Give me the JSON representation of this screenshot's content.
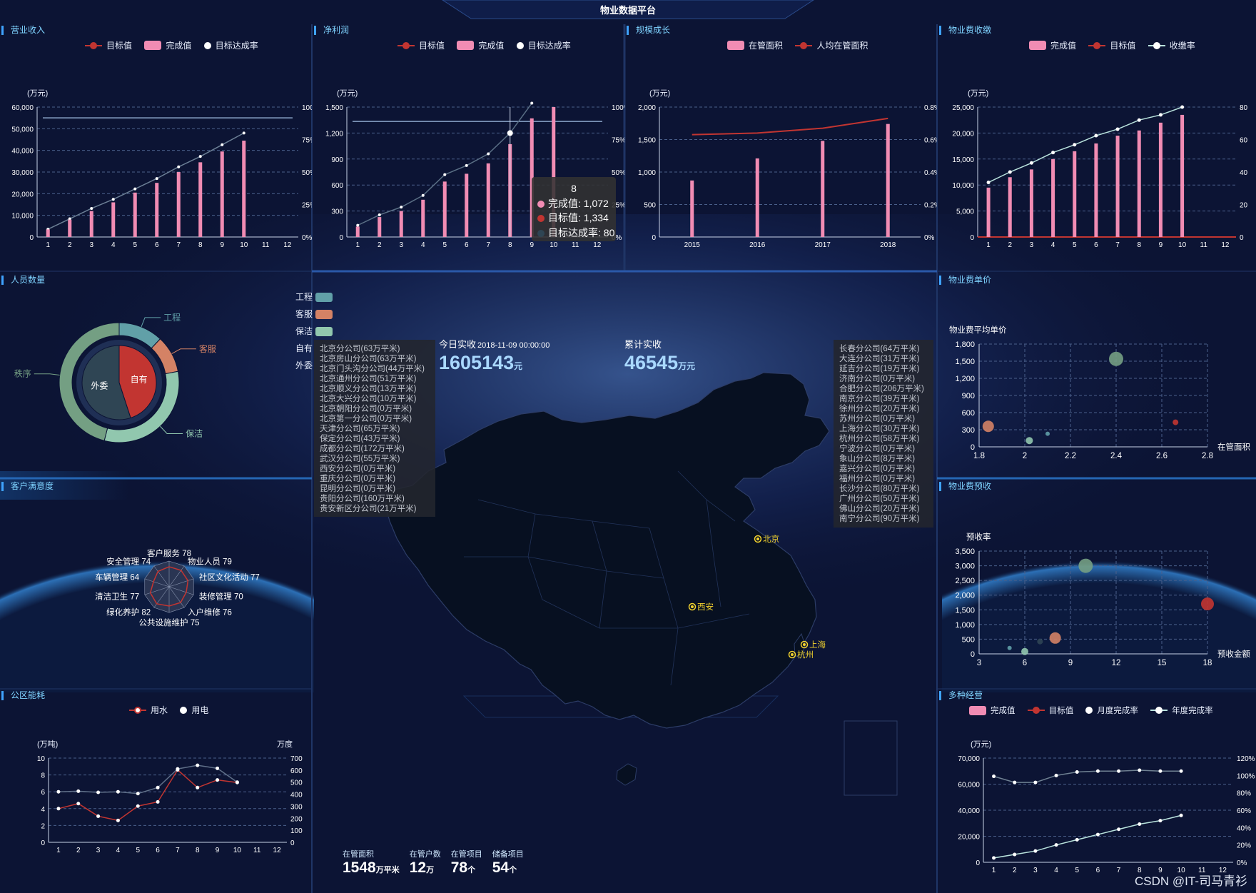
{
  "page_title": "物业数据平台",
  "unit_wan_yuan": "(万元)",
  "colors": {
    "accent": "#7fd3ff",
    "bar": "#f18cb3",
    "target": "#c23531",
    "rate": "#b9e3dd",
    "panel_title": "#7fd3ff"
  },
  "revenue": {
    "title": "营业收入",
    "legend": [
      "目标值",
      "完成值",
      "目标达成率"
    ],
    "y_unit": "(万元)",
    "chart_data": {
      "type": "bar",
      "categories": [
        "1",
        "2",
        "3",
        "4",
        "5",
        "6",
        "7",
        "8",
        "9",
        "10",
        "11",
        "12"
      ],
      "series": [
        {
          "name": "目标值",
          "values": [
            55000,
            55000,
            55000,
            55000,
            55000,
            55000,
            55000,
            55000,
            55000,
            55000,
            55000,
            55000
          ]
        },
        {
          "name": "完成值",
          "values": [
            3500,
            8000,
            12000,
            16000,
            20500,
            25000,
            30000,
            34500,
            39500,
            44500,
            null,
            null
          ]
        },
        {
          "name": "目标达成率",
          "values": [
            6,
            14,
            22,
            29,
            37,
            45,
            54,
            62,
            71,
            80,
            null,
            null
          ]
        }
      ],
      "ylim": [
        0,
        60000
      ],
      "y_ticks": [
        "0",
        "10,000",
        "20,000",
        "30,000",
        "40,000",
        "50,000",
        "60,000"
      ],
      "y2_ticks": [
        "0%",
        "25%",
        "50%",
        "75%",
        "100%"
      ]
    }
  },
  "net_profit": {
    "title": "净利润",
    "legend": [
      "目标值",
      "完成值",
      "目标达成率"
    ],
    "y_unit": "(万元)",
    "chart_data": {
      "type": "bar",
      "categories": [
        "1",
        "2",
        "3",
        "4",
        "5",
        "6",
        "7",
        "8",
        "9",
        "10",
        "11",
        "12"
      ],
      "series": [
        {
          "name": "目标值",
          "values": [
            1334,
            1334,
            1334,
            1334,
            1334,
            1334,
            1334,
            1334,
            1334,
            1334,
            1334,
            1334
          ]
        },
        {
          "name": "完成值",
          "values": [
            120,
            230,
            300,
            430,
            640,
            730,
            850,
            1072,
            1370,
            1500,
            null,
            null
          ]
        },
        {
          "name": "目标达成率",
          "values": [
            9,
            17,
            23,
            32,
            48,
            55,
            64,
            80,
            103,
            null,
            null,
            null
          ]
        }
      ],
      "ylim": [
        0,
        1500
      ],
      "y_ticks": [
        "0",
        "300",
        "600",
        "900",
        "1,200",
        "1,500"
      ],
      "y2_ticks": [
        "0%",
        "25%",
        "50%",
        "75%",
        "100%"
      ]
    },
    "tooltip": {
      "title": "8",
      "rows": [
        "完成值: 1,072",
        "目标值: 1,334",
        "目标达成率: 80"
      ]
    }
  },
  "scale_growth": {
    "title": "规模成长",
    "legend": [
      "在管面积",
      "人均在管面积"
    ],
    "y_unit": "(万元)",
    "chart_data": {
      "type": "bar",
      "categories": [
        "2015",
        "2016",
        "2017",
        "2018"
      ],
      "series": [
        {
          "name": "在管面积",
          "values": [
            870,
            1210,
            1480,
            1740
          ]
        },
        {
          "name": "人均在管面积",
          "values": [
            0.63,
            0.64,
            0.67,
            0.73
          ]
        }
      ],
      "ylim": [
        0,
        2000
      ],
      "y_ticks": [
        "0",
        "500",
        "1,000",
        "1,500",
        "2,000"
      ],
      "y2_ticks": [
        "0%",
        "0.2%",
        "0.4%",
        "0.6%",
        "0.8%"
      ]
    }
  },
  "fee_collection": {
    "title": "物业费收缴",
    "legend": [
      "完成值",
      "目标值",
      "收缴率"
    ],
    "y_unit": "(万元)",
    "chart_data": {
      "type": "bar",
      "categories": [
        "1",
        "2",
        "3",
        "4",
        "5",
        "6",
        "7",
        "8",
        "9",
        "10",
        "11",
        "12"
      ],
      "series": [
        {
          "name": "完成值",
          "values": [
            9500,
            11500,
            13000,
            15000,
            16500,
            18000,
            19500,
            20500,
            22000,
            23500,
            null,
            null
          ]
        },
        {
          "name": "目标值",
          "values": [
            0,
            0,
            0,
            0,
            0,
            0,
            0,
            0,
            0,
            0,
            0,
            0
          ]
        },
        {
          "name": "收缴率",
          "values": [
            42,
            50,
            57,
            65,
            71,
            78,
            83,
            90,
            94,
            100,
            null,
            null
          ]
        }
      ],
      "ylim": [
        0,
        25000
      ],
      "y_ticks": [
        "0",
        "5,000",
        "10,000",
        "15,000",
        "20,000",
        "25,000"
      ],
      "y2_ticks": [
        "0",
        "20",
        "40",
        "60",
        "80"
      ]
    }
  },
  "staff": {
    "title": "人员数量",
    "legend": [
      "工程",
      "客服",
      "保洁",
      "自有",
      "外委"
    ],
    "labels": {
      "outer": [
        "工程",
        "客服",
        "保洁",
        "秩序"
      ],
      "inner": [
        "自有",
        "外委"
      ]
    },
    "chart_data": {
      "type": "pie",
      "outer": [
        {
          "name": "工程",
          "value": 12
        },
        {
          "name": "客服",
          "value": 10
        },
        {
          "name": "保洁",
          "value": 32
        },
        {
          "name": "秩序",
          "value": 46
        }
      ],
      "inner": [
        {
          "name": "自有",
          "value": 45
        },
        {
          "name": "外委",
          "value": 55
        }
      ]
    }
  },
  "satisfaction": {
    "title": "客户满意度",
    "chart_data": {
      "type": "radar",
      "items": [
        {
          "name": "客户服务",
          "value": 78
        },
        {
          "name": "物业人员",
          "value": 79
        },
        {
          "name": "社区文化活动",
          "value": 77
        },
        {
          "name": "装修管理",
          "value": 70
        },
        {
          "name": "入户维修",
          "value": 76
        },
        {
          "name": "公共设施维护",
          "value": 75
        },
        {
          "name": "绿化养护",
          "value": 82
        },
        {
          "name": "清洁卫生",
          "value": 77
        },
        {
          "name": "车辆管理",
          "value": 64
        },
        {
          "name": "安全管理",
          "value": 74
        }
      ]
    }
  },
  "energy": {
    "title": "公区能耗",
    "legend": [
      "用水",
      "用电"
    ],
    "y_unit": "(万吨)",
    "y2_unit": "万度",
    "chart_data": {
      "type": "line",
      "categories": [
        "1",
        "2",
        "3",
        "4",
        "5",
        "6",
        "7",
        "8",
        "9",
        "10",
        "11",
        "12"
      ],
      "series": [
        {
          "name": "用水",
          "values": [
            4,
            4.6,
            3.1,
            2.6,
            4.3,
            4.8,
            8.6,
            6.5,
            7.4,
            7.1,
            null,
            null
          ]
        },
        {
          "name": "用电",
          "values": [
            420,
            425,
            415,
            420,
            405,
            455,
            610,
            640,
            615,
            500,
            null,
            null
          ]
        }
      ],
      "ylim": [
        0,
        10
      ],
      "y_ticks": [
        "0",
        "2",
        "4",
        "6",
        "8",
        "10"
      ],
      "y2_ticks": [
        "0",
        "100",
        "200",
        "300",
        "400",
        "500",
        "600",
        "700"
      ]
    }
  },
  "realtime": {
    "today_label": "今日实收",
    "datetime": "2018-11-09 00:00:00",
    "today_value": "1605143",
    "today_unit": "元",
    "total_label": "累计实收",
    "total_value": "46545",
    "total_unit": "万元"
  },
  "branches_left": [
    "北京分公司(63万平米)",
    "北京房山分公司(63万平米)",
    "北京门头沟分公司(44万平米)",
    "北京通州分公司(51万平米)",
    "北京顺义分公司(13万平米)",
    "北京大兴分公司(10万平米)",
    "北京朝阳分公司(0万平米)",
    "北京第一分公司(0万平米)",
    "天津分公司(65万平米)",
    "保定分公司(43万平米)",
    "成都分公司(172万平米)",
    "武汉分公司(55万平米)",
    "西安分公司(0万平米)",
    "重庆分公司(0万平米)",
    "昆明分公司(0万平米)",
    "贵阳分公司(160万平米)",
    "贵安新区分公司(21万平米)"
  ],
  "branches_right": [
    "长春分公司(64万平米)",
    "大连分公司(31万平米)",
    "延吉分公司(19万平米)",
    "济南分公司(0万平米)",
    "合肥分公司(206万平米)",
    "南京分公司(39万平米)",
    "徐州分公司(20万平米)",
    "苏州分公司(0万平米)",
    "上海分公司(30万平米)",
    "杭州分公司(58万平米)",
    "宁波分公司(0万平米)",
    "象山分公司(8万平米)",
    "嘉兴分公司(0万平米)",
    "福州分公司(0万平米)",
    "长沙分公司(80万平米)",
    "广州分公司(50万平米)",
    "佛山分公司(20万平米)",
    "南宁分公司(90万平米)"
  ],
  "map_cities": [
    "北京",
    "西安",
    "上海",
    "杭州"
  ],
  "bottom_stats": [
    {
      "label": "在管面积",
      "value": "1548",
      "unit": "万平米"
    },
    {
      "label": "在管户数",
      "value": "12",
      "unit": "万"
    },
    {
      "label": "在管项目",
      "value": "78",
      "unit": "个"
    },
    {
      "label": "储备项目",
      "value": "54",
      "unit": "个"
    }
  ],
  "unit_price": {
    "title": "物业费单价",
    "y_title": "物业费平均单价",
    "x_title": "在管面积",
    "chart_data": {
      "type": "scatter",
      "xlim": [
        1.8,
        2.8
      ],
      "ylim": [
        0,
        1800
      ],
      "x_ticks": [
        "1.8",
        "2",
        "2.2",
        "2.4",
        "2.6",
        "2.8"
      ],
      "y_ticks": [
        "0",
        "300",
        "600",
        "900",
        "1,200",
        "1,500",
        "1,800"
      ],
      "points": [
        {
          "x": 1.84,
          "y": 360
        },
        {
          "x": 2.02,
          "y": 110
        },
        {
          "x": 2.1,
          "y": 230
        },
        {
          "x": 2.4,
          "y": 1540
        },
        {
          "x": 2.66,
          "y": 430
        }
      ]
    }
  },
  "prepaid": {
    "title": "物业费预收",
    "y_title": "预收率",
    "x_title": "预收金额",
    "chart_data": {
      "type": "scatter",
      "xlim": [
        3,
        18
      ],
      "ylim": [
        0,
        3500
      ],
      "x_ticks": [
        "3",
        "6",
        "9",
        "12",
        "15",
        "18"
      ],
      "y_ticks": [
        "0",
        "500",
        "1,000",
        "1,500",
        "2,000",
        "2,500",
        "3,000",
        "3,500"
      ],
      "points": [
        {
          "x": 5,
          "y": 200
        },
        {
          "x": 6,
          "y": 80
        },
        {
          "x": 7,
          "y": 420
        },
        {
          "x": 8,
          "y": 540
        },
        {
          "x": 10,
          "y": 3000
        },
        {
          "x": 18,
          "y": 1700
        }
      ]
    }
  },
  "multi_business": {
    "title": "多种经营",
    "legend": [
      "完成值",
      "目标值",
      "月度完成率",
      "年度完成率"
    ],
    "y_unit": "(万元)",
    "chart_data": {
      "type": "line",
      "categories": [
        "1",
        "2",
        "3",
        "4",
        "5",
        "6",
        "7",
        "8",
        "9",
        "10",
        "11",
        "12"
      ],
      "series": [
        {
          "name": "年度完成率",
          "values": [
            5,
            9,
            13,
            20,
            26,
            32,
            38,
            44,
            48,
            54,
            null,
            null
          ]
        },
        {
          "name": "月度完成率",
          "values": [
            99,
            92,
            92,
            100,
            104,
            105,
            105,
            106,
            105,
            105,
            null,
            null
          ]
        }
      ],
      "ylim": [
        0,
        70000
      ],
      "y_ticks": [
        "0",
        "20,000",
        "40,000",
        "60,000",
        "70,000"
      ],
      "y2_ticks": [
        "0%",
        "20%",
        "40%",
        "60%",
        "80%",
        "100%",
        "120%"
      ]
    }
  },
  "watermark": "CSDN @IT-司马青衫"
}
